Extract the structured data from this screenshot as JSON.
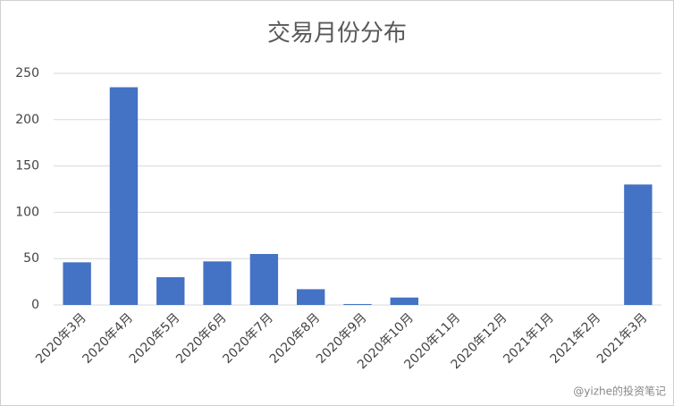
{
  "chart_data": {
    "type": "bar",
    "title": "交易月份分布",
    "categories": [
      "2020年3月",
      "2020年4月",
      "2020年5月",
      "2020年6月",
      "2020年7月",
      "2020年8月",
      "2020年9月",
      "2020年10月",
      "2020年11月",
      "2020年12月",
      "2021年1月",
      "2021年2月",
      "2021年3月"
    ],
    "values": [
      46,
      235,
      30,
      47,
      55,
      17,
      1,
      8,
      0,
      0,
      0,
      0,
      130
    ],
    "color": "#4472c4",
    "ylim": [
      0,
      250
    ],
    "yticks": [
      0,
      50,
      100,
      150,
      200,
      250
    ],
    "grid": true
  },
  "watermark": "@yizhe的投资笔记"
}
